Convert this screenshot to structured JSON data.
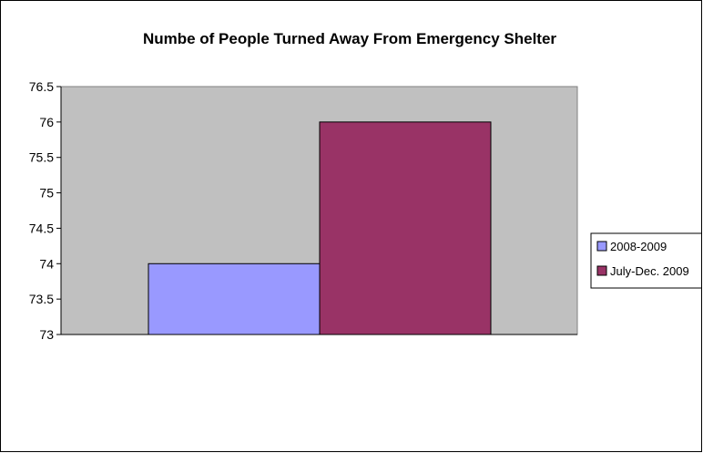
{
  "chart_data": {
    "type": "bar",
    "title": "Numbe of People Turned Away From Emergency Shelter",
    "xlabel": "",
    "ylabel": "",
    "ylim": [
      73,
      76.5
    ],
    "yticks": [
      "76.5",
      "76",
      "75.5",
      "75",
      "74.5",
      "74",
      "73.5",
      "73"
    ],
    "grid": false,
    "legend_position": "right",
    "plot_background": "#c0c0c0",
    "series": [
      {
        "name": "2008-2009",
        "values": [
          74
        ],
        "color": "#9999ff"
      },
      {
        "name": "July-Dec. 2009",
        "values": [
          76
        ],
        "color": "#993366"
      }
    ]
  }
}
